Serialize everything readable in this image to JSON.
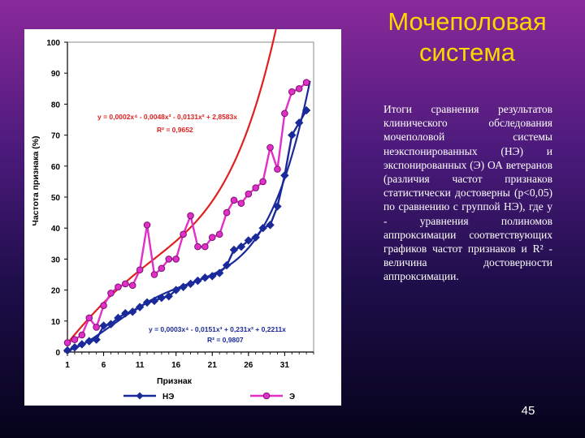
{
  "slide": {
    "title": "Мочеполовая система",
    "description": "Итоги сравнения результатов клинического обследования мочеполовой системы неэкспонированных (НЭ) и экспонированных (Э) ОА ветеранов (различия частот признаков статистически достоверны (р<0,05) по сравнению с группой НЭ), где y - уравнения полиномов аппроксимации соответствующих графиков частот признаков и R² - величина достоверности аппроксимации.",
    "page_number": "45"
  },
  "chart_data": {
    "type": "line",
    "xlabel": "Признак",
    "ylabel": "Частота признака (%)",
    "xlim": [
      1,
      35
    ],
    "ylim": [
      0,
      100
    ],
    "x_ticks": [
      1,
      6,
      11,
      16,
      21,
      26,
      31
    ],
    "y_ticks": [
      0,
      10,
      20,
      30,
      40,
      50,
      60,
      70,
      80,
      90,
      100
    ],
    "legend_position": "bottom",
    "series": [
      {
        "name": "НЭ",
        "color": "#1a2a9a",
        "marker": "diamond",
        "x": [
          1,
          2,
          3,
          4,
          5,
          6,
          7,
          8,
          9,
          10,
          11,
          12,
          13,
          14,
          15,
          16,
          17,
          18,
          19,
          20,
          21,
          22,
          23,
          24,
          25,
          26,
          27,
          28,
          29,
          30,
          31,
          32,
          33,
          34
        ],
        "values": [
          0.5,
          1.5,
          2.5,
          3.5,
          4,
          8.5,
          9,
          11,
          12.5,
          13,
          14.5,
          16,
          16.5,
          17.5,
          18,
          20,
          21,
          22,
          23,
          24,
          24.5,
          25.5,
          28,
          33,
          34,
          36,
          37,
          40,
          41,
          47,
          57,
          70,
          74,
          78
        ]
      },
      {
        "name": "Э",
        "color": "#e030c8",
        "marker": "circle",
        "x": [
          1,
          2,
          3,
          4,
          5,
          6,
          7,
          8,
          9,
          10,
          11,
          12,
          13,
          14,
          15,
          16,
          17,
          18,
          19,
          20,
          21,
          22,
          23,
          24,
          25,
          26,
          27,
          28,
          29,
          30,
          31,
          32,
          33,
          34
        ],
        "values": [
          3,
          4,
          5.5,
          11,
          8,
          15,
          19,
          21,
          22,
          21.5,
          26.5,
          41,
          25,
          27,
          30,
          30,
          38,
          44,
          34,
          34,
          37,
          38,
          45,
          49,
          48,
          51,
          53,
          55,
          66,
          59,
          77,
          84,
          85,
          87
        ]
      }
    ],
    "trendlines": [
      {
        "series": "Э",
        "color": "#e02020",
        "equation": "y = 0,0002x⁴ - 0,0048x³ - 0,0131x² + 2,8583x",
        "r2": "R² = 0,9652",
        "coefficients": [
          0,
          2.8583,
          -0.0131,
          -0.0048,
          0.0002
        ]
      },
      {
        "series": "НЭ",
        "color": "#1a2a9a",
        "equation": "y = 0,0003x⁴ - 0,0151x³ + 0,231x² + 0,2211x",
        "r2": "R² = 0,9807",
        "coefficients": [
          0,
          0.2211,
          0.231,
          -0.0151,
          0.0003
        ]
      }
    ]
  }
}
